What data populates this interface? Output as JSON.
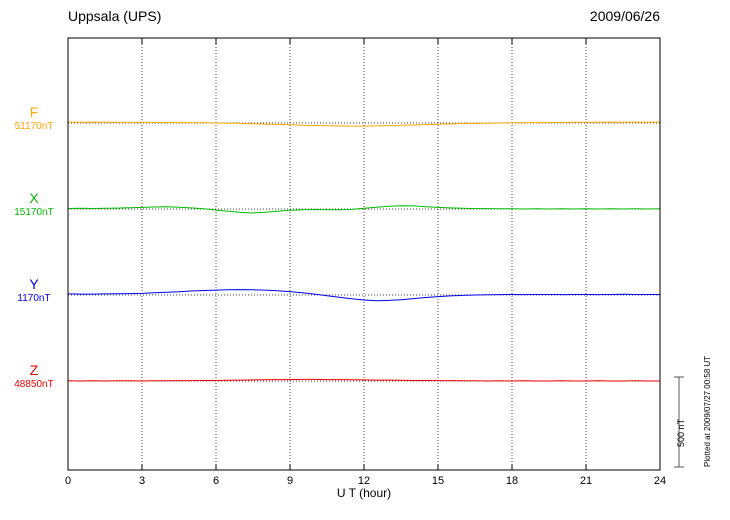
{
  "header": {
    "title": "Uppsala (UPS)",
    "date": "2009/06/26"
  },
  "chart_data": {
    "type": "line",
    "title": "Uppsala (UPS)",
    "date_label": "2009/06/26",
    "xlabel": "U T (hour)",
    "xlim": [
      0,
      24
    ],
    "x_ticks": [
      0,
      3,
      6,
      9,
      12,
      15,
      18,
      21,
      24
    ],
    "grid": "vertical dotted lines every 3 hours; dotted horizontal baseline per channel",
    "legend_position": "left margin channel labels",
    "scale_bar": {
      "label": "500 nT",
      "nT": 500
    },
    "plotted_at": "Plotted at 2009/07/27 00:58 UT",
    "sample_interval_hours": 0.5,
    "series": [
      {
        "name": "F",
        "color": "#FFA500",
        "baseline_label": "51170nT",
        "baseline_nT": 51170,
        "offsets_nT": [
          5,
          4,
          5,
          4,
          4,
          3,
          4,
          3,
          3,
          2,
          2,
          1,
          0,
          -1,
          -2,
          -4,
          -6,
          -8,
          -10,
          -12,
          -14,
          -15,
          -16,
          -17,
          -17,
          -16,
          -15,
          -13,
          -11,
          -9,
          -7,
          -5,
          -3,
          -2,
          -1,
          0,
          1,
          2,
          2,
          3,
          3,
          4,
          4,
          4,
          5,
          4,
          5,
          4,
          5
        ]
      },
      {
        "name": "X",
        "color": "#00BB00",
        "baseline_label": "15170nT",
        "baseline_nT": 15170,
        "offsets_nT": [
          3,
          4,
          3,
          4,
          5,
          7,
          9,
          11,
          12,
          10,
          6,
          1,
          -6,
          -13,
          -19,
          -22,
          -18,
          -12,
          -7,
          -4,
          -3,
          -4,
          -4,
          -2,
          4,
          10,
          15,
          18,
          17,
          13,
          9,
          6,
          4,
          2,
          2,
          1,
          1,
          0,
          1,
          0,
          1,
          0,
          1,
          0,
          1,
          0,
          1,
          0,
          1
        ]
      },
      {
        "name": "Y",
        "color": "#0000EE",
        "baseline_label": "1170nT",
        "baseline_nT": 1170,
        "offsets_nT": [
          6,
          5,
          5,
          6,
          7,
          8,
          9,
          12,
          15,
          18,
          22,
          25,
          27,
          29,
          30,
          29,
          27,
          24,
          19,
          13,
          5,
          -4,
          -13,
          -21,
          -28,
          -32,
          -30,
          -26,
          -20,
          -14,
          -9,
          -5,
          -2,
          0,
          1,
          2,
          3,
          2,
          3,
          3,
          2,
          3,
          3,
          2,
          3,
          4,
          3,
          3,
          3
        ]
      },
      {
        "name": "Z",
        "color": "#EE0000",
        "baseline_label": "48850nT",
        "baseline_nT": 48850,
        "offsets_nT": [
          1,
          0,
          1,
          0,
          1,
          1,
          0,
          1,
          1,
          2,
          2,
          3,
          3,
          4,
          5,
          6,
          7,
          8,
          8,
          9,
          9,
          8,
          8,
          7,
          6,
          5,
          5,
          4,
          3,
          3,
          2,
          2,
          1,
          1,
          0,
          1,
          0,
          1,
          0,
          0,
          1,
          0,
          0,
          1,
          0,
          0,
          1,
          0,
          0
        ]
      }
    ]
  }
}
